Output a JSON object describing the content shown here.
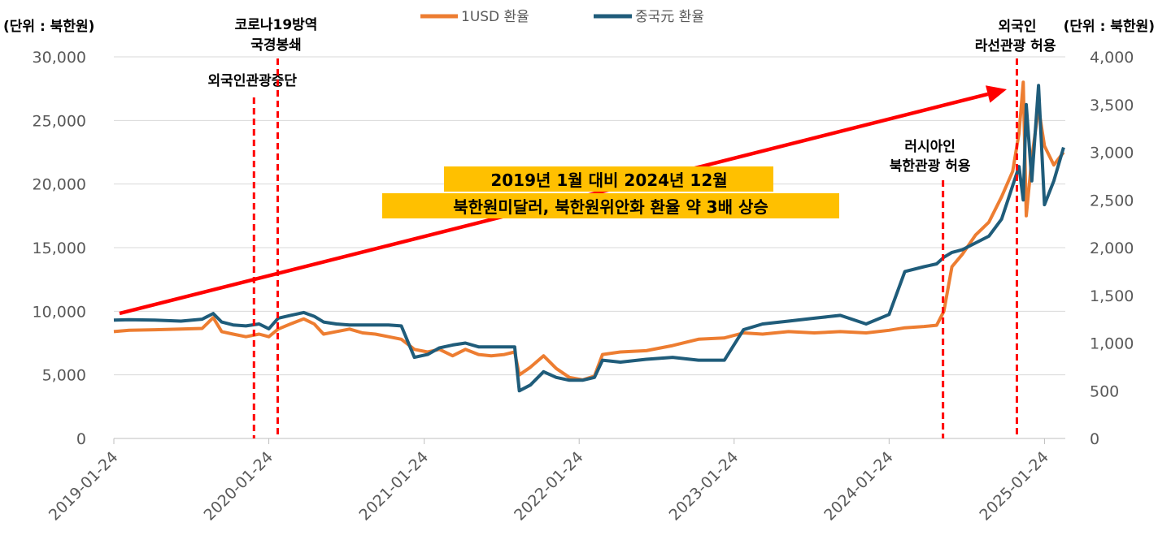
{
  "chart_data": {
    "type": "line",
    "title": "",
    "left_unit_label": "(단위 : 북한원)",
    "right_unit_label": "(단위 : 북한원)",
    "x_tick_labels": [
      "2019-01-24",
      "2020-01-24",
      "2021-01-24",
      "2022-01-24",
      "2023-01-24",
      "2024-01-24",
      "2025-01-24"
    ],
    "y_left": {
      "min": 0,
      "max": 30000,
      "ticks": [
        "0",
        "5,000",
        "10,000",
        "15,000",
        "20,000",
        "25,000",
        "30,000"
      ]
    },
    "y_right": {
      "min": 0,
      "max": 4000,
      "ticks": [
        "0",
        "500",
        "1,000",
        "1,500",
        "2,000",
        "2,500",
        "3,000",
        "3,500",
        "4,000"
      ]
    },
    "grid": true,
    "legend_position": "top",
    "series": [
      {
        "name": "1USD 환율",
        "axis": "left",
        "color": "#ED7D31",
        "points": [
          [
            "2019-01-24",
            8400
          ],
          [
            "2019-03-01",
            8500
          ],
          [
            "2019-05-01",
            8550
          ],
          [
            "2019-07-01",
            8600
          ],
          [
            "2019-08-20",
            8650
          ],
          [
            "2019-09-15",
            9500
          ],
          [
            "2019-10-05",
            8400
          ],
          [
            "2019-11-01",
            8200
          ],
          [
            "2019-12-01",
            8000
          ],
          [
            "2020-01-01",
            8200
          ],
          [
            "2020-01-24",
            8000
          ],
          [
            "2020-02-15",
            8600
          ],
          [
            "2020-03-15",
            9000
          ],
          [
            "2020-04-15",
            9400
          ],
          [
            "2020-05-10",
            9000
          ],
          [
            "2020-06-01",
            8200
          ],
          [
            "2020-07-01",
            8400
          ],
          [
            "2020-08-01",
            8600
          ],
          [
            "2020-09-01",
            8300
          ],
          [
            "2020-10-01",
            8200
          ],
          [
            "2020-11-01",
            8000
          ],
          [
            "2020-12-01",
            7800
          ],
          [
            "2021-01-01",
            7000
          ],
          [
            "2021-02-01",
            6800
          ],
          [
            "2021-03-01",
            7000
          ],
          [
            "2021-04-01",
            6500
          ],
          [
            "2021-05-01",
            7000
          ],
          [
            "2021-06-01",
            6600
          ],
          [
            "2021-07-01",
            6500
          ],
          [
            "2021-08-01",
            6600
          ],
          [
            "2021-08-25",
            6800
          ],
          [
            "2021-09-05",
            5000
          ],
          [
            "2021-10-01",
            5600
          ],
          [
            "2021-11-01",
            6500
          ],
          [
            "2021-12-01",
            5500
          ],
          [
            "2022-01-01",
            4800
          ],
          [
            "2022-02-01",
            4600
          ],
          [
            "2022-03-01",
            4900
          ],
          [
            "2022-03-20",
            6600
          ],
          [
            "2022-05-01",
            6800
          ],
          [
            "2022-07-01",
            6900
          ],
          [
            "2022-09-01",
            7300
          ],
          [
            "2022-11-01",
            7800
          ],
          [
            "2023-01-01",
            7900
          ],
          [
            "2023-02-15",
            8300
          ],
          [
            "2023-04-01",
            8200
          ],
          [
            "2023-06-01",
            8400
          ],
          [
            "2023-08-01",
            8300
          ],
          [
            "2023-10-01",
            8400
          ],
          [
            "2023-12-01",
            8300
          ],
          [
            "2024-01-24",
            8500
          ],
          [
            "2024-03-01",
            8700
          ],
          [
            "2024-04-15",
            8800
          ],
          [
            "2024-05-15",
            8900
          ],
          [
            "2024-06-01",
            10000
          ],
          [
            "2024-06-20",
            13500
          ],
          [
            "2024-07-15",
            14500
          ],
          [
            "2024-08-15",
            16000
          ],
          [
            "2024-09-15",
            17000
          ],
          [
            "2024-10-15",
            19000
          ],
          [
            "2024-11-10",
            21000
          ],
          [
            "2024-11-25",
            24000
          ],
          [
            "2024-12-05",
            28000
          ],
          [
            "2024-12-12",
            17500
          ],
          [
            "2024-12-25",
            22000
          ],
          [
            "2025-01-10",
            26000
          ],
          [
            "2025-01-24",
            23000
          ],
          [
            "2025-02-15",
            21500
          ],
          [
            "2025-03-10",
            22500
          ]
        ]
      },
      {
        "name": "중국元 환율",
        "axis": "right",
        "color": "#1F5C7A",
        "points": [
          [
            "2019-01-24",
            1240
          ],
          [
            "2019-03-01",
            1245
          ],
          [
            "2019-05-01",
            1240
          ],
          [
            "2019-07-01",
            1230
          ],
          [
            "2019-08-20",
            1250
          ],
          [
            "2019-09-15",
            1310
          ],
          [
            "2019-10-05",
            1220
          ],
          [
            "2019-11-01",
            1190
          ],
          [
            "2019-12-01",
            1180
          ],
          [
            "2020-01-01",
            1200
          ],
          [
            "2020-01-24",
            1150
          ],
          [
            "2020-02-15",
            1260
          ],
          [
            "2020-03-15",
            1290
          ],
          [
            "2020-04-15",
            1320
          ],
          [
            "2020-05-10",
            1280
          ],
          [
            "2020-06-01",
            1220
          ],
          [
            "2020-07-01",
            1200
          ],
          [
            "2020-08-01",
            1190
          ],
          [
            "2020-09-01",
            1190
          ],
          [
            "2020-10-01",
            1190
          ],
          [
            "2020-11-01",
            1190
          ],
          [
            "2020-12-01",
            1180
          ],
          [
            "2021-01-01",
            850
          ],
          [
            "2021-02-01",
            880
          ],
          [
            "2021-03-01",
            950
          ],
          [
            "2021-04-01",
            980
          ],
          [
            "2021-05-01",
            1000
          ],
          [
            "2021-06-01",
            960
          ],
          [
            "2021-07-01",
            960
          ],
          [
            "2021-08-01",
            960
          ],
          [
            "2021-08-25",
            960
          ],
          [
            "2021-09-05",
            500
          ],
          [
            "2021-10-01",
            560
          ],
          [
            "2021-11-01",
            700
          ],
          [
            "2021-12-01",
            640
          ],
          [
            "2022-01-01",
            610
          ],
          [
            "2022-02-01",
            610
          ],
          [
            "2022-03-01",
            640
          ],
          [
            "2022-03-20",
            820
          ],
          [
            "2022-05-01",
            800
          ],
          [
            "2022-07-01",
            830
          ],
          [
            "2022-09-01",
            850
          ],
          [
            "2022-11-01",
            820
          ],
          [
            "2023-01-01",
            820
          ],
          [
            "2023-02-15",
            1140
          ],
          [
            "2023-04-01",
            1200
          ],
          [
            "2023-06-01",
            1230
          ],
          [
            "2023-08-01",
            1260
          ],
          [
            "2023-10-01",
            1290
          ],
          [
            "2023-12-01",
            1200
          ],
          [
            "2024-01-24",
            1300
          ],
          [
            "2024-03-01",
            1750
          ],
          [
            "2024-04-15",
            1800
          ],
          [
            "2024-05-15",
            1830
          ],
          [
            "2024-06-01",
            1900
          ],
          [
            "2024-06-20",
            1950
          ],
          [
            "2024-07-15",
            1980
          ],
          [
            "2024-08-15",
            2050
          ],
          [
            "2024-09-15",
            2120
          ],
          [
            "2024-10-15",
            2300
          ],
          [
            "2024-11-10",
            2650
          ],
          [
            "2024-11-25",
            2850
          ],
          [
            "2024-12-05",
            2500
          ],
          [
            "2024-12-12",
            3500
          ],
          [
            "2024-12-25",
            2700
          ],
          [
            "2025-01-10",
            3700
          ],
          [
            "2025-01-24",
            2450
          ],
          [
            "2025-02-15",
            2700
          ],
          [
            "2025-03-10",
            3050
          ]
        ]
      }
    ],
    "vertical_markers": [
      {
        "date": "2019-12-20",
        "label": "외국인관광중단"
      },
      {
        "date": "2020-02-14",
        "label": "코로나19방역 국경봉쇄"
      },
      {
        "date": "2024-05-30",
        "label": "러시아인 북한관광 허용"
      },
      {
        "date": "2024-11-20",
        "label": "외국인 라선관광 허용"
      }
    ],
    "annotation": {
      "line1": "2019년 1월 대비 2024년 12월",
      "line2": "북한원미달러, 북한원위안화 환율 약 3배 상승"
    }
  },
  "colors": {
    "usd_line": "#ED7D31",
    "cny_line": "#1F5C7A",
    "marker": "#FF0000",
    "arrow": "#FF0000",
    "highlight_bg": "#FFC000",
    "grid": "#D9D9D9"
  }
}
